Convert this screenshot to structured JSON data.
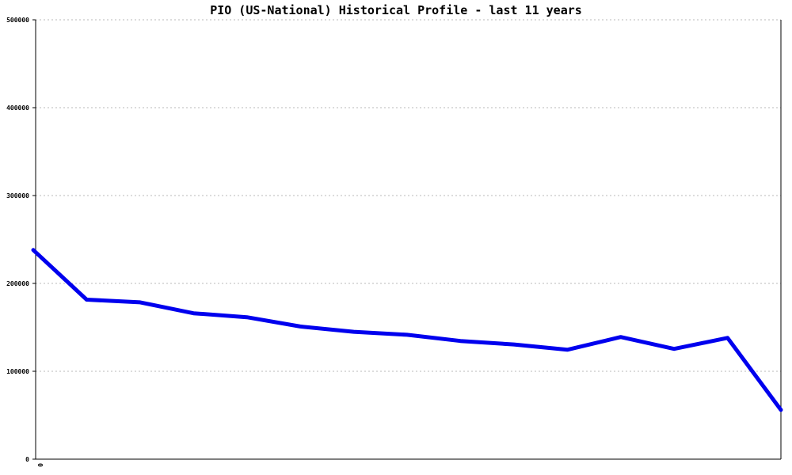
{
  "chart_data": {
    "type": "line",
    "title": "PIO (US-National) Historical Profile - last 11 years",
    "xlabel": "",
    "ylabel": "",
    "x_tick_labels": [
      "0"
    ],
    "y_ticks": [
      0,
      100000,
      200000,
      300000,
      400000,
      500000
    ],
    "y_tick_labels": [
      "0",
      "100000",
      "200000",
      "300000",
      "400000",
      "500000"
    ],
    "ylim": [
      0,
      500000
    ],
    "grid": true,
    "legend": "none",
    "series": [
      {
        "color": "#0000ee",
        "values": [
          238000,
          181500,
          178500,
          166000,
          161500,
          151000,
          145000,
          141500,
          134500,
          130500,
          124500,
          139000,
          125500,
          138000,
          56000
        ]
      }
    ]
  }
}
